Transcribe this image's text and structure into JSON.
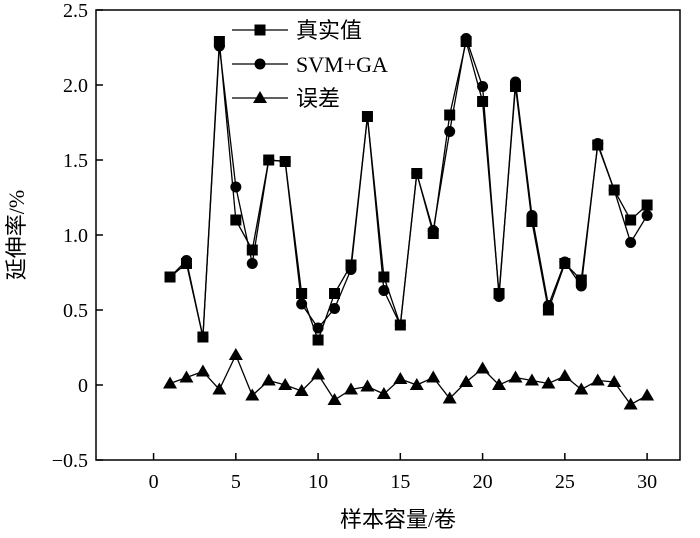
{
  "chart_data": {
    "type": "line",
    "xlabel": "样本容量/卷",
    "ylabel": "延伸率/%",
    "xlim": [
      -3.5,
      32
    ],
    "ylim": [
      -0.5,
      2.5
    ],
    "xticks": [
      0,
      5,
      10,
      15,
      20,
      25,
      30
    ],
    "yticks": [
      -0.5,
      0,
      0.5,
      1.0,
      1.5,
      2.0,
      2.5
    ],
    "xtick_labels": [
      "0",
      "5",
      "10",
      "15",
      "20",
      "25",
      "30"
    ],
    "ytick_labels": [
      "−0.5",
      "0",
      "0.5",
      "1.0",
      "1.5",
      "2.0",
      "2.5"
    ],
    "legend_position": "top-center",
    "grid": false,
    "x": [
      1,
      2,
      3,
      4,
      5,
      6,
      7,
      8,
      9,
      10,
      11,
      12,
      13,
      14,
      15,
      16,
      17,
      18,
      19,
      20,
      21,
      22,
      23,
      24,
      25,
      26,
      27,
      28,
      29,
      30
    ],
    "series": [
      {
        "name": "真实值",
        "marker": "square",
        "values": [
          0.72,
          0.81,
          0.32,
          2.29,
          1.1,
          0.9,
          1.5,
          1.49,
          0.61,
          0.3,
          0.61,
          0.8,
          1.79,
          0.72,
          0.4,
          1.41,
          1.01,
          1.8,
          2.29,
          1.89,
          0.61,
          1.99,
          1.09,
          0.5,
          0.81,
          0.7,
          1.6,
          1.3,
          1.1,
          1.2
        ]
      },
      {
        "name": "SVM+GA",
        "marker": "circle",
        "values": [
          0.72,
          0.83,
          0.32,
          2.26,
          1.32,
          0.81,
          1.5,
          1.49,
          0.54,
          0.38,
          0.51,
          0.77,
          1.79,
          0.63,
          0.4,
          1.41,
          1.03,
          1.69,
          2.31,
          1.99,
          0.59,
          2.02,
          1.13,
          0.53,
          0.82,
          0.66,
          1.61,
          1.3,
          0.95,
          1.13
        ]
      },
      {
        "name": "误差",
        "marker": "triangle",
        "values": [
          0.01,
          0.05,
          0.09,
          -0.03,
          0.2,
          -0.07,
          0.03,
          0.0,
          -0.04,
          0.07,
          -0.1,
          -0.03,
          -0.01,
          -0.06,
          0.04,
          0.0,
          0.05,
          -0.09,
          0.02,
          0.11,
          0.0,
          0.05,
          0.03,
          0.01,
          0.06,
          -0.03,
          0.03,
          0.02,
          -0.13,
          -0.07
        ]
      }
    ],
    "colors": {
      "line": "#000000",
      "marker": "#000000",
      "axis": "#000000"
    }
  }
}
